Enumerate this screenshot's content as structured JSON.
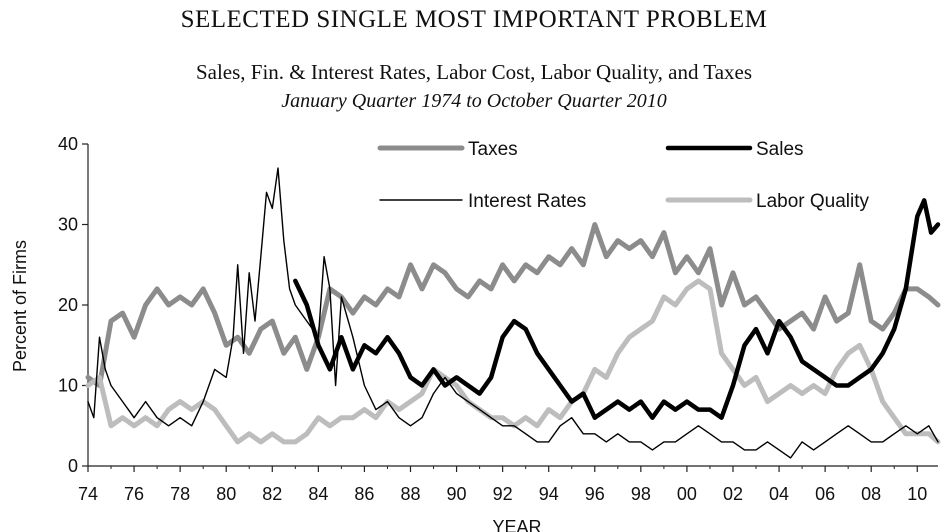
{
  "chart_data": {
    "type": "line",
    "title": "SELECTED SINGLE MOST IMPORTANT PROBLEM",
    "subtitle": "Sales, Fin. & Interest Rates, Labor Cost, Labor Quality, and Taxes",
    "period": "January Quarter 1974 to October Quarter 2010",
    "xlabel": "YEAR",
    "ylabel": "Percent of Firms",
    "xlim": [
      1974,
      2010.9
    ],
    "ylim": [
      0,
      40
    ],
    "yticks": [
      "0",
      "10",
      "20",
      "30",
      "40"
    ],
    "xticks": [
      "74",
      "76",
      "78",
      "80",
      "82",
      "84",
      "86",
      "88",
      "90",
      "92",
      "94",
      "96",
      "98",
      "00",
      "02",
      "04",
      "06",
      "08",
      "10"
    ],
    "series": [
      {
        "name": "Taxes",
        "color": "#8c8c8c",
        "width": 5,
        "points": [
          [
            1974,
            11
          ],
          [
            1974.5,
            10
          ],
          [
            1975,
            18
          ],
          [
            1975.5,
            19
          ],
          [
            1976,
            16
          ],
          [
            1976.5,
            20
          ],
          [
            1977,
            22
          ],
          [
            1977.5,
            20
          ],
          [
            1978,
            21
          ],
          [
            1978.5,
            20
          ],
          [
            1979,
            22
          ],
          [
            1979.5,
            19
          ],
          [
            1980,
            15
          ],
          [
            1980.5,
            16
          ],
          [
            1981,
            14
          ],
          [
            1981.5,
            17
          ],
          [
            1982,
            18
          ],
          [
            1982.5,
            14
          ],
          [
            1983,
            16
          ],
          [
            1983.5,
            12
          ],
          [
            1984,
            16
          ],
          [
            1984.5,
            22
          ],
          [
            1985,
            21
          ],
          [
            1985.5,
            19
          ],
          [
            1986,
            21
          ],
          [
            1986.5,
            20
          ],
          [
            1987,
            22
          ],
          [
            1987.5,
            21
          ],
          [
            1988,
            25
          ],
          [
            1988.5,
            22
          ],
          [
            1989,
            25
          ],
          [
            1989.5,
            24
          ],
          [
            1990,
            22
          ],
          [
            1990.5,
            21
          ],
          [
            1991,
            23
          ],
          [
            1991.5,
            22
          ],
          [
            1992,
            25
          ],
          [
            1992.5,
            23
          ],
          [
            1993,
            25
          ],
          [
            1993.5,
            24
          ],
          [
            1994,
            26
          ],
          [
            1994.5,
            25
          ],
          [
            1995,
            27
          ],
          [
            1995.5,
            25
          ],
          [
            1996,
            30
          ],
          [
            1996.5,
            26
          ],
          [
            1997,
            28
          ],
          [
            1997.5,
            27
          ],
          [
            1998,
            28
          ],
          [
            1998.5,
            26
          ],
          [
            1999,
            29
          ],
          [
            1999.5,
            24
          ],
          [
            2000,
            26
          ],
          [
            2000.5,
            24
          ],
          [
            2001,
            27
          ],
          [
            2001.5,
            20
          ],
          [
            2002,
            24
          ],
          [
            2002.5,
            20
          ],
          [
            2003,
            21
          ],
          [
            2003.5,
            19
          ],
          [
            2004,
            17
          ],
          [
            2004.5,
            18
          ],
          [
            2005,
            19
          ],
          [
            2005.5,
            17
          ],
          [
            2006,
            21
          ],
          [
            2006.5,
            18
          ],
          [
            2007,
            19
          ],
          [
            2007.5,
            25
          ],
          [
            2008,
            18
          ],
          [
            2008.5,
            17
          ],
          [
            2009,
            19
          ],
          [
            2009.5,
            22
          ],
          [
            2010,
            22
          ],
          [
            2010.5,
            21
          ],
          [
            2010.9,
            20
          ]
        ]
      },
      {
        "name": "Sales",
        "color": "#000000",
        "width": 4.5,
        "points": [
          [
            1983,
            23
          ],
          [
            1983.5,
            20
          ],
          [
            1984,
            15
          ],
          [
            1984.5,
            12
          ],
          [
            1985,
            16
          ],
          [
            1985.5,
            12
          ],
          [
            1986,
            15
          ],
          [
            1986.5,
            14
          ],
          [
            1987,
            16
          ],
          [
            1987.5,
            14
          ],
          [
            1988,
            11
          ],
          [
            1988.5,
            10
          ],
          [
            1989,
            12
          ],
          [
            1989.5,
            10
          ],
          [
            1990,
            11
          ],
          [
            1990.5,
            10
          ],
          [
            1991,
            9
          ],
          [
            1991.5,
            11
          ],
          [
            1992,
            16
          ],
          [
            1992.5,
            18
          ],
          [
            1993,
            17
          ],
          [
            1993.5,
            14
          ],
          [
            1994,
            12
          ],
          [
            1994.5,
            10
          ],
          [
            1995,
            8
          ],
          [
            1995.5,
            9
          ],
          [
            1996,
            6
          ],
          [
            1996.5,
            7
          ],
          [
            1997,
            8
          ],
          [
            1997.5,
            7
          ],
          [
            1998,
            8
          ],
          [
            1998.5,
            6
          ],
          [
            1999,
            8
          ],
          [
            1999.5,
            7
          ],
          [
            2000,
            8
          ],
          [
            2000.5,
            7
          ],
          [
            2001,
            7
          ],
          [
            2001.5,
            6
          ],
          [
            2002,
            10
          ],
          [
            2002.5,
            15
          ],
          [
            2003,
            17
          ],
          [
            2003.5,
            14
          ],
          [
            2004,
            18
          ],
          [
            2004.5,
            16
          ],
          [
            2005,
            13
          ],
          [
            2005.5,
            12
          ],
          [
            2006,
            11
          ],
          [
            2006.5,
            10
          ],
          [
            2007,
            10
          ],
          [
            2007.5,
            11
          ],
          [
            2008,
            12
          ],
          [
            2008.5,
            14
          ],
          [
            2009,
            17
          ],
          [
            2009.5,
            22
          ],
          [
            2010,
            31
          ],
          [
            2010.3,
            33
          ],
          [
            2010.6,
            29
          ],
          [
            2010.9,
            30
          ]
        ]
      },
      {
        "name": "Interest Rates",
        "color": "#000000",
        "width": 1.4,
        "points": [
          [
            1974,
            8
          ],
          [
            1974.25,
            6
          ],
          [
            1974.5,
            16
          ],
          [
            1974.75,
            12
          ],
          [
            1975,
            10
          ],
          [
            1975.5,
            8
          ],
          [
            1976,
            6
          ],
          [
            1976.5,
            8
          ],
          [
            1977,
            6
          ],
          [
            1977.5,
            5
          ],
          [
            1978,
            6
          ],
          [
            1978.5,
            5
          ],
          [
            1979,
            8
          ],
          [
            1979.5,
            12
          ],
          [
            1980,
            11
          ],
          [
            1980.3,
            16
          ],
          [
            1980.5,
            25
          ],
          [
            1980.75,
            14
          ],
          [
            1981,
            24
          ],
          [
            1981.25,
            18
          ],
          [
            1981.5,
            26
          ],
          [
            1981.75,
            34
          ],
          [
            1982,
            32
          ],
          [
            1982.25,
            37
          ],
          [
            1982.5,
            28
          ],
          [
            1982.75,
            22
          ],
          [
            1983,
            20
          ],
          [
            1983.5,
            18
          ],
          [
            1984,
            16
          ],
          [
            1984.25,
            26
          ],
          [
            1984.5,
            22
          ],
          [
            1984.75,
            10
          ],
          [
            1985,
            21
          ],
          [
            1985.5,
            16
          ],
          [
            1986,
            10
          ],
          [
            1986.5,
            7
          ],
          [
            1987,
            8
          ],
          [
            1987.5,
            6
          ],
          [
            1988,
            5
          ],
          [
            1988.5,
            6
          ],
          [
            1989,
            9
          ],
          [
            1989.5,
            11
          ],
          [
            1990,
            9
          ],
          [
            1990.5,
            8
          ],
          [
            1991,
            7
          ],
          [
            1991.5,
            6
          ],
          [
            1992,
            5
          ],
          [
            1992.5,
            5
          ],
          [
            1993,
            4
          ],
          [
            1993.5,
            3
          ],
          [
            1994,
            3
          ],
          [
            1994.5,
            5
          ],
          [
            1995,
            6
          ],
          [
            1995.5,
            4
          ],
          [
            1996,
            4
          ],
          [
            1996.5,
            3
          ],
          [
            1997,
            4
          ],
          [
            1997.5,
            3
          ],
          [
            1998,
            3
          ],
          [
            1998.5,
            2
          ],
          [
            1999,
            3
          ],
          [
            1999.5,
            3
          ],
          [
            2000,
            4
          ],
          [
            2000.5,
            5
          ],
          [
            2001,
            4
          ],
          [
            2001.5,
            3
          ],
          [
            2002,
            3
          ],
          [
            2002.5,
            2
          ],
          [
            2003,
            2
          ],
          [
            2003.5,
            3
          ],
          [
            2004,
            2
          ],
          [
            2004.5,
            1
          ],
          [
            2005,
            3
          ],
          [
            2005.5,
            2
          ],
          [
            2006,
            3
          ],
          [
            2006.5,
            4
          ],
          [
            2007,
            5
          ],
          [
            2007.5,
            4
          ],
          [
            2008,
            3
          ],
          [
            2008.5,
            3
          ],
          [
            2009,
            4
          ],
          [
            2009.5,
            5
          ],
          [
            2010,
            4
          ],
          [
            2010.5,
            5
          ],
          [
            2010.9,
            3
          ]
        ]
      },
      {
        "name": "Labor Quality",
        "color": "#bdbdbd",
        "width": 5,
        "points": [
          [
            1974,
            10
          ],
          [
            1974.5,
            11
          ],
          [
            1975,
            5
          ],
          [
            1975.5,
            6
          ],
          [
            1976,
            5
          ],
          [
            1976.5,
            6
          ],
          [
            1977,
            5
          ],
          [
            1977.5,
            7
          ],
          [
            1978,
            8
          ],
          [
            1978.5,
            7
          ],
          [
            1979,
            8
          ],
          [
            1979.5,
            7
          ],
          [
            1980,
            5
          ],
          [
            1980.5,
            3
          ],
          [
            1981,
            4
          ],
          [
            1981.5,
            3
          ],
          [
            1982,
            4
          ],
          [
            1982.5,
            3
          ],
          [
            1983,
            3
          ],
          [
            1983.5,
            4
          ],
          [
            1984,
            6
          ],
          [
            1984.5,
            5
          ],
          [
            1985,
            6
          ],
          [
            1985.5,
            6
          ],
          [
            1986,
            7
          ],
          [
            1986.5,
            6
          ],
          [
            1987,
            8
          ],
          [
            1987.5,
            7
          ],
          [
            1988,
            8
          ],
          [
            1988.5,
            9
          ],
          [
            1989,
            12
          ],
          [
            1989.5,
            11
          ],
          [
            1990,
            10
          ],
          [
            1990.5,
            8
          ],
          [
            1991,
            7
          ],
          [
            1991.5,
            6
          ],
          [
            1992,
            6
          ],
          [
            1992.5,
            5
          ],
          [
            1993,
            6
          ],
          [
            1993.5,
            5
          ],
          [
            1994,
            7
          ],
          [
            1994.5,
            6
          ],
          [
            1995,
            8
          ],
          [
            1995.5,
            9
          ],
          [
            1996,
            12
          ],
          [
            1996.5,
            11
          ],
          [
            1997,
            14
          ],
          [
            1997.5,
            16
          ],
          [
            1998,
            17
          ],
          [
            1998.5,
            18
          ],
          [
            1999,
            21
          ],
          [
            1999.5,
            20
          ],
          [
            2000,
            22
          ],
          [
            2000.5,
            23
          ],
          [
            2001,
            22
          ],
          [
            2001.5,
            14
          ],
          [
            2002,
            12
          ],
          [
            2002.5,
            10
          ],
          [
            2003,
            11
          ],
          [
            2003.5,
            8
          ],
          [
            2004,
            9
          ],
          [
            2004.5,
            10
          ],
          [
            2005,
            9
          ],
          [
            2005.5,
            10
          ],
          [
            2006,
            9
          ],
          [
            2006.5,
            12
          ],
          [
            2007,
            14
          ],
          [
            2007.5,
            15
          ],
          [
            2008,
            12
          ],
          [
            2008.5,
            8
          ],
          [
            2009,
            6
          ],
          [
            2009.5,
            4
          ],
          [
            2010,
            4
          ],
          [
            2010.5,
            4
          ],
          [
            2010.9,
            3
          ]
        ]
      }
    ]
  }
}
